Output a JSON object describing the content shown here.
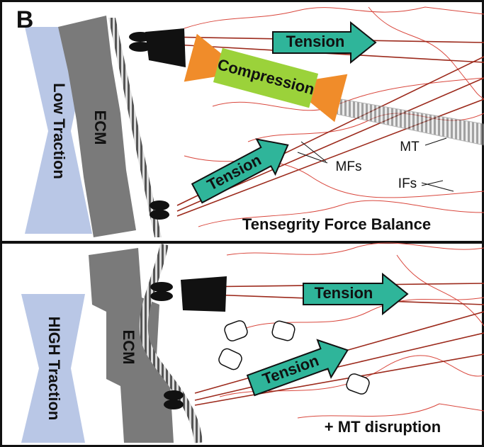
{
  "label": "B",
  "panels": [
    {
      "traction": "Low Traction",
      "ecm": "ECM",
      "arrows": [
        "Tension",
        "Tension"
      ],
      "compression": "Compression",
      "annotations": [
        "MT",
        "MFs",
        "IFs"
      ],
      "caption": "Tensegrity Force Balance"
    },
    {
      "traction": "HIGH Traction",
      "ecm": "ECM",
      "arrows": [
        "Tension",
        "Tension"
      ],
      "caption": "+ MT disruption"
    }
  ]
}
